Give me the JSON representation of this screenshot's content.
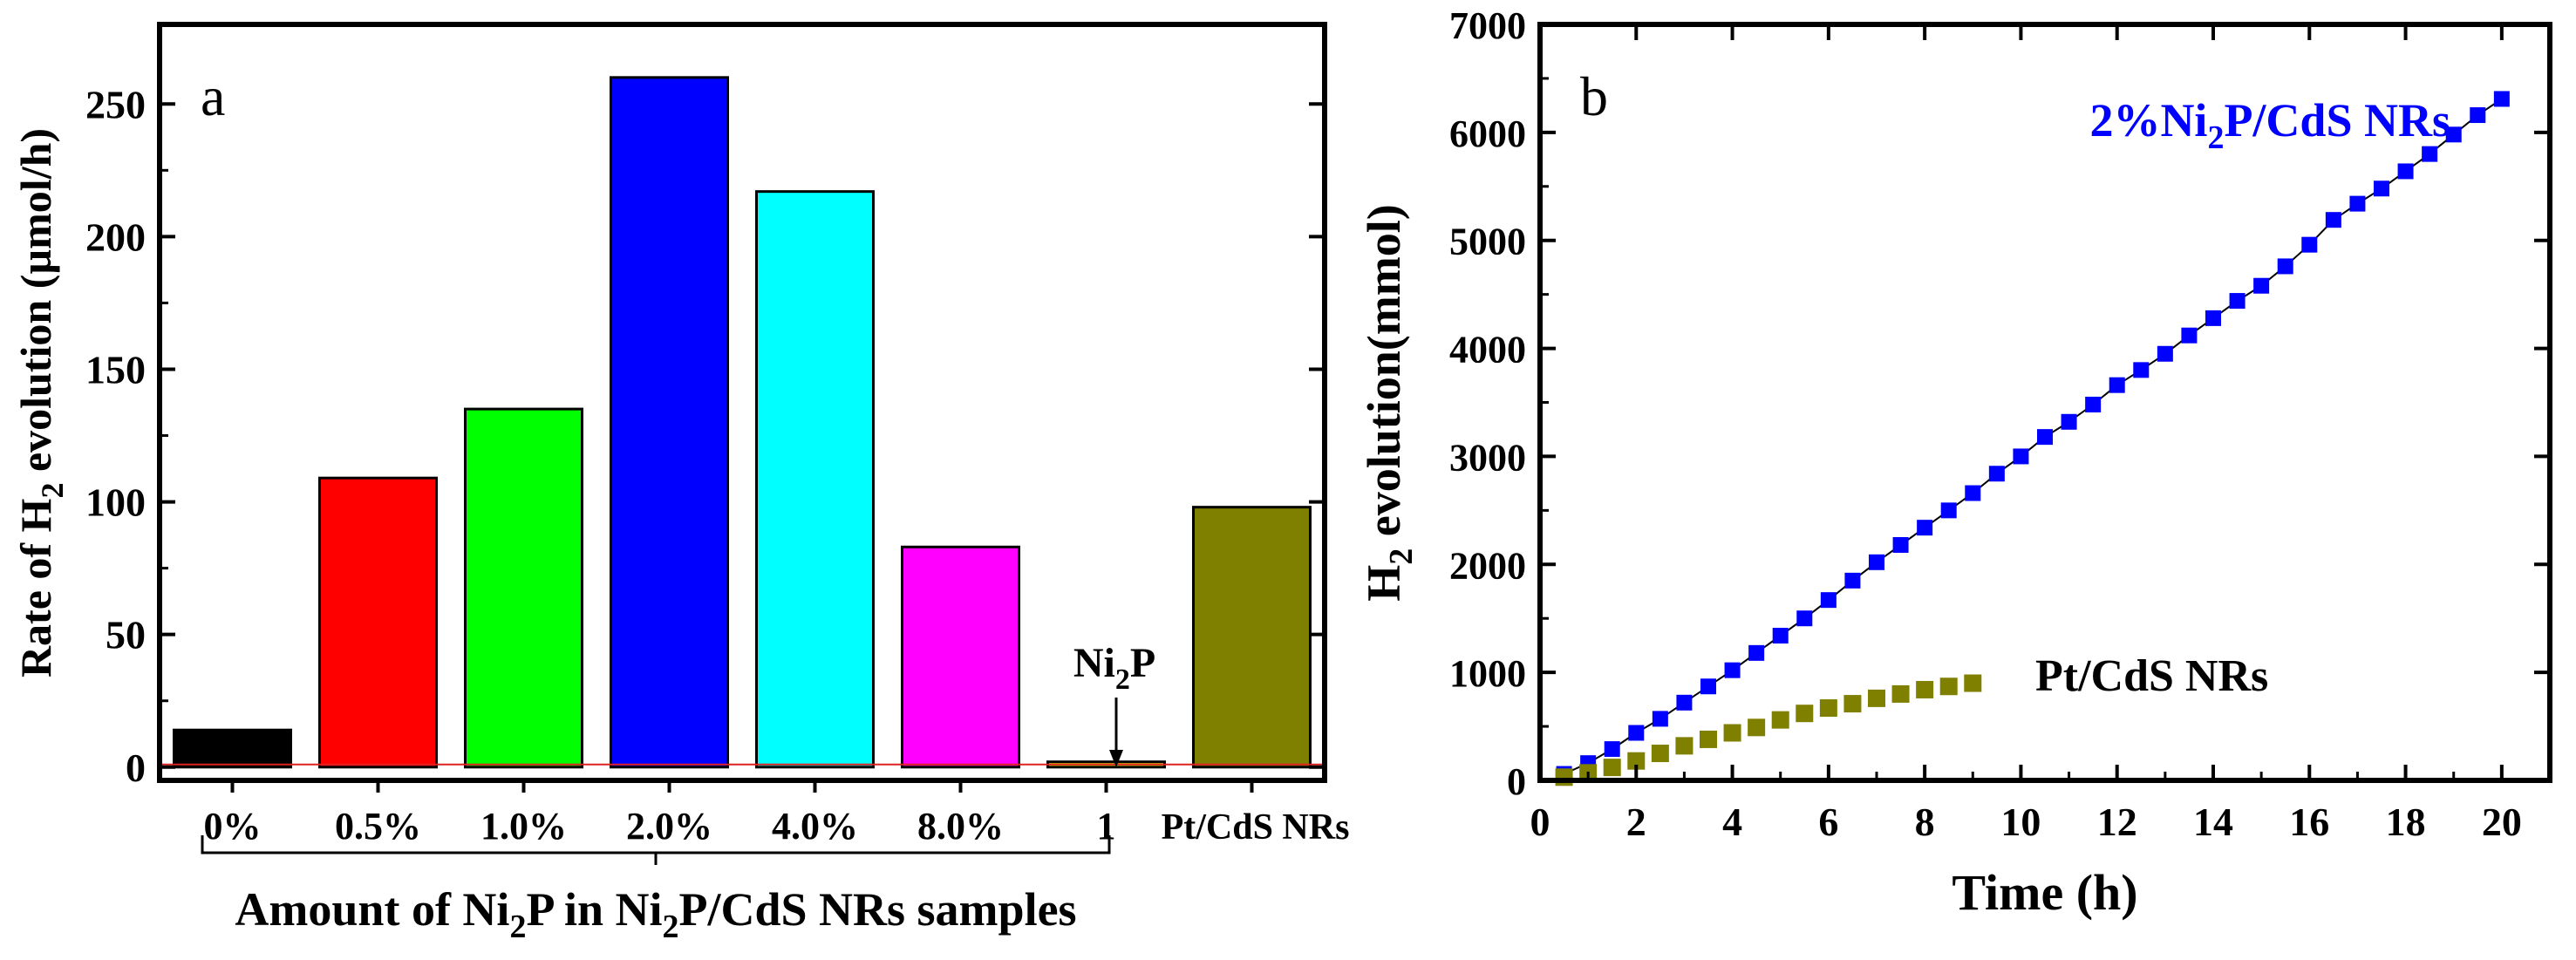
{
  "chart_data": [
    {
      "panel": "a",
      "type": "bar",
      "ylabel_parts": [
        "Rate of H",
        "2",
        " evolution (µmol/h)"
      ],
      "xlabel_parts": [
        "Amount of Ni",
        "2",
        "P in Ni",
        "2",
        "P/CdS NRs samples"
      ],
      "categories": [
        "0%",
        "0.5%",
        "1.0%",
        "2.0%",
        "4.0%",
        "8.0%",
        "1",
        "Pt/CdS NRs"
      ],
      "values": [
        14,
        109,
        135,
        260,
        217,
        83,
        2,
        98
      ],
      "colors": [
        "#000000",
        "#ff0000",
        "#00ff00",
        "#0000ff",
        "#00ffff",
        "#ff00ff",
        "#ffff00",
        "#808000"
      ],
      "ylim": [
        -5,
        280
      ],
      "yticks": [
        0,
        50,
        100,
        150,
        200,
        250
      ],
      "reference_line": 1,
      "annotation_parts": [
        "Ni",
        "2",
        "P"
      ],
      "annotation_category": "1"
    },
    {
      "panel": "b",
      "type": "scatter",
      "ylabel_parts": [
        "H",
        "2",
        " evolution(mmol)"
      ],
      "xlabel": "Time (h)",
      "xlim": [
        0,
        21
      ],
      "ylim": [
        0,
        7000
      ],
      "xticks": [
        0,
        2,
        4,
        6,
        8,
        10,
        12,
        14,
        16,
        18,
        20
      ],
      "yticks": [
        0,
        1000,
        2000,
        3000,
        4000,
        5000,
        6000,
        7000
      ],
      "series": [
        {
          "name_parts": [
            "2%Ni",
            "2",
            "P/CdS NRs"
          ],
          "color": "#0000ff",
          "connected": true,
          "x": [
            0.5,
            1,
            1.5,
            2,
            2.5,
            3,
            3.5,
            4,
            4.5,
            5,
            5.5,
            6,
            6.5,
            7,
            7.5,
            8,
            8.5,
            9,
            9.5,
            10,
            10.5,
            11,
            11.5,
            12,
            12.5,
            13,
            13.5,
            14,
            14.5,
            15,
            15.5,
            16,
            16.5,
            17,
            17.5,
            18,
            18.5,
            19,
            19.5,
            20
          ],
          "y": [
            60,
            160,
            290,
            440,
            570,
            720,
            870,
            1020,
            1180,
            1340,
            1500,
            1670,
            1850,
            2020,
            2180,
            2340,
            2500,
            2660,
            2840,
            3000,
            3180,
            3320,
            3480,
            3660,
            3800,
            3950,
            4120,
            4280,
            4440,
            4580,
            4760,
            4960,
            5190,
            5340,
            5480,
            5640,
            5800,
            5980,
            6160,
            6310
          ]
        },
        {
          "name": "Pt/CdS NRs",
          "color": "#808000",
          "connected": false,
          "x": [
            0.5,
            1,
            1.5,
            2,
            2.5,
            3,
            3.5,
            4,
            4.5,
            5,
            5.5,
            6,
            6.5,
            7,
            7.5,
            8,
            8.5,
            9
          ],
          "y": [
            30,
            70,
            120,
            180,
            250,
            320,
            380,
            440,
            490,
            560,
            620,
            670,
            710,
            760,
            800,
            840,
            870,
            900
          ]
        }
      ]
    }
  ]
}
